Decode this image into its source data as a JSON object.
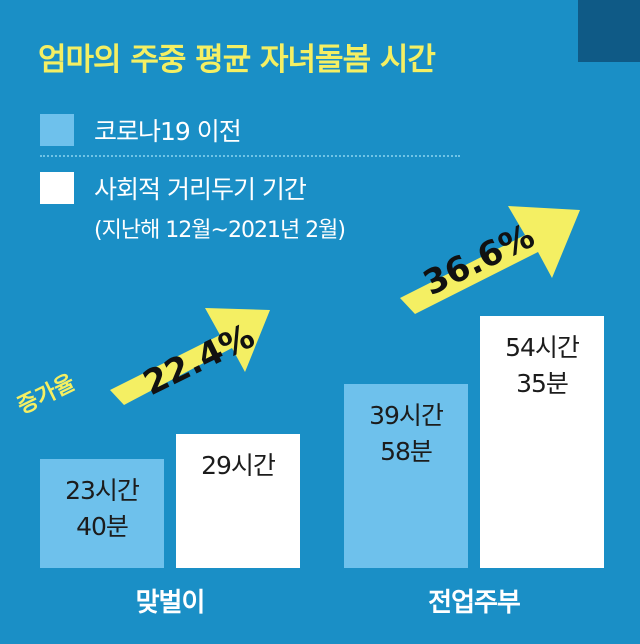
{
  "title": "엄마의 주중 평균 자녀돌봄 시간",
  "legend": {
    "before": "코로나19 이전",
    "during": "사회적 거리두기 기간",
    "during_sub": "(지난해 12월~2021년 2월)"
  },
  "increase_label": "증가율",
  "colors": {
    "background": "#1a8fc6",
    "before": "#6ec1ec",
    "during": "#ffffff",
    "accent": "#f4ef63",
    "arrow": "#f4ef63"
  },
  "chart_data": {
    "type": "bar",
    "title": "엄마의 주중 평균 자녀돌봄 시간",
    "categories": [
      "맞벌이",
      "전업주부"
    ],
    "series": [
      {
        "name": "코로나19 이전",
        "values": [
          23.67,
          39.97
        ],
        "labels": [
          "23시간\n40분",
          "39시간\n58분"
        ]
      },
      {
        "name": "사회적 거리두기 기간",
        "values": [
          29,
          54.58
        ],
        "labels": [
          "29시간",
          "54시간\n35분"
        ]
      }
    ],
    "increase_rates": [
      "22.4%",
      "36.6%"
    ],
    "grid": false,
    "legend_position": "top-left"
  }
}
